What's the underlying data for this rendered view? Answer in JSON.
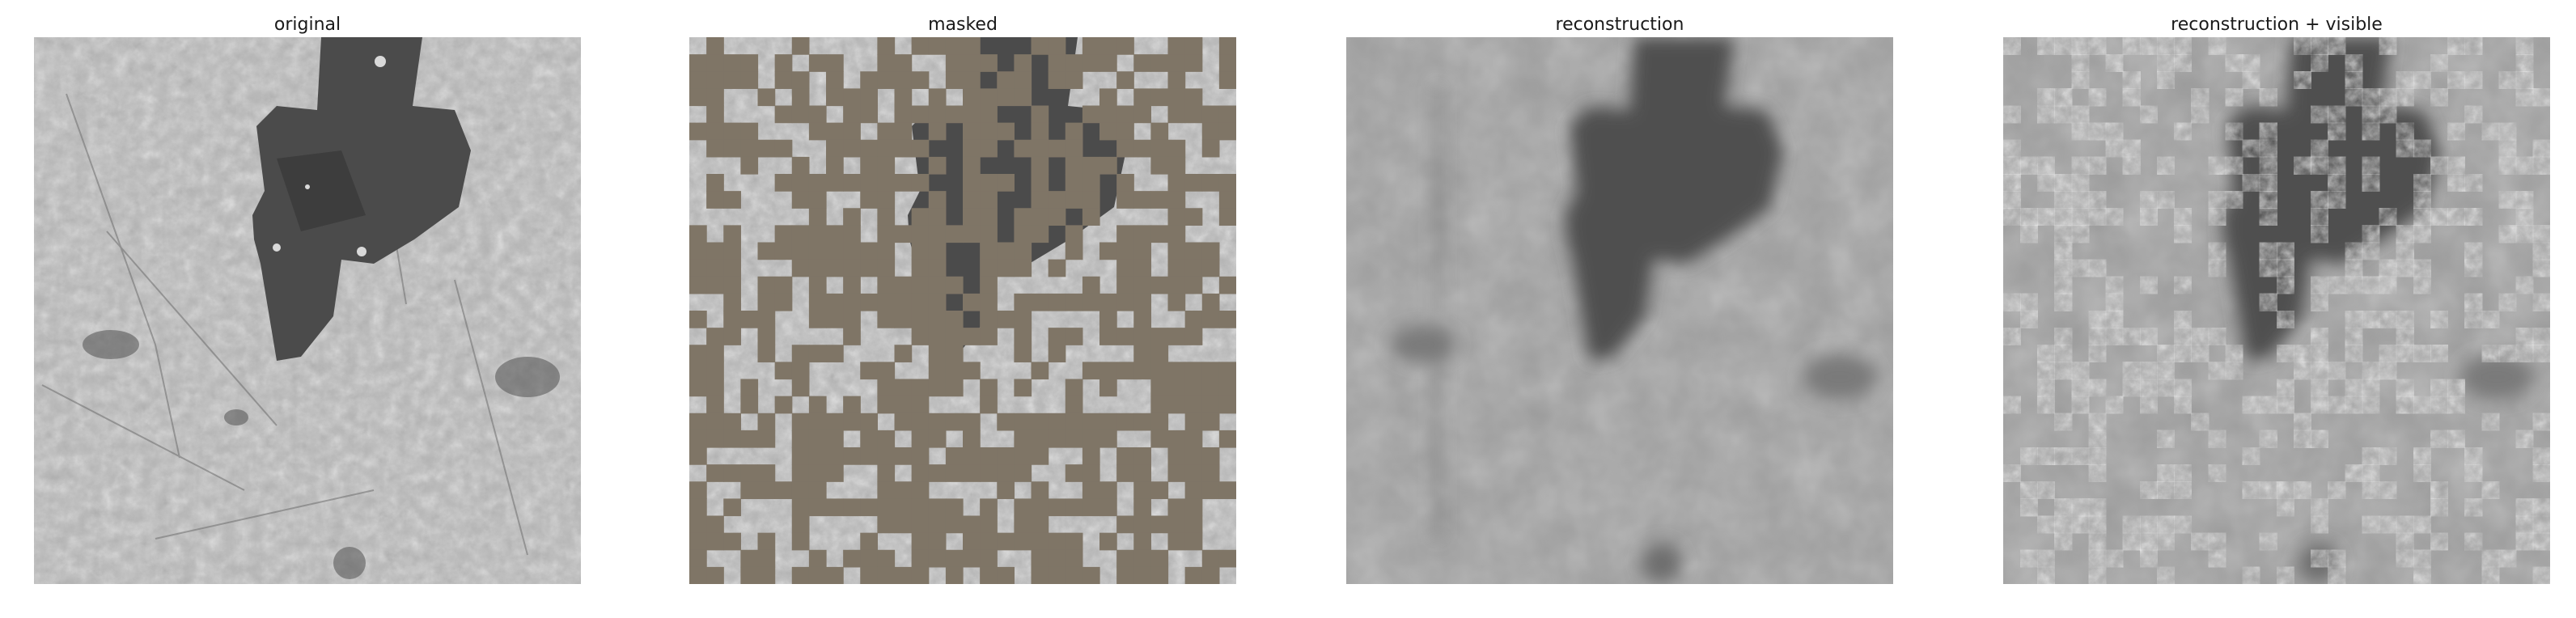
{
  "figure": {
    "panels": [
      {
        "id": "original",
        "title": "original",
        "image": "original-image",
        "mask_fill": null
      },
      {
        "id": "masked",
        "title": "masked",
        "image": "masked-image",
        "mask_fill": "#7f7566"
      },
      {
        "id": "reconstruction",
        "title": "reconstruction",
        "image": "reconstruction-image",
        "mask_fill": null
      },
      {
        "id": "reconstruction-visible",
        "title": "reconstruction + visible",
        "image": "reconstruction-visible-image",
        "mask_fill": null
      }
    ],
    "colors": {
      "texture_light": "#bfbfbf",
      "texture_mid": "#a6a6a6",
      "stain_dark": "#4a4a4a",
      "mask_gray_brown": "#7f7566",
      "reconstruction_gray": "#9b9b9b"
    }
  }
}
